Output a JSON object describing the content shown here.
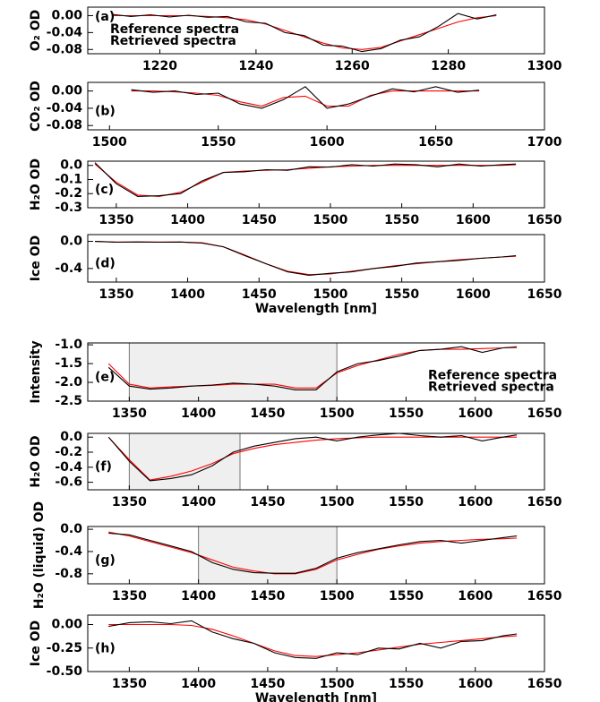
{
  "chart_data": [
    {
      "type": "line",
      "label": "(a)",
      "ylabel": "O₂ OD",
      "legend": "upper left",
      "x": [
        1210,
        1214,
        1218,
        1222,
        1226,
        1230,
        1234,
        1238,
        1242,
        1246,
        1250,
        1254,
        1258,
        1262,
        1266,
        1270,
        1274,
        1278,
        1282,
        1286,
        1290
      ],
      "series": [
        {
          "name": "Reference spectra",
          "color": "#ff0000",
          "values": [
            0,
            0,
            0,
            0,
            0,
            -0.002,
            -0.005,
            -0.01,
            -0.02,
            -0.035,
            -0.05,
            -0.065,
            -0.076,
            -0.08,
            -0.075,
            -0.06,
            -0.045,
            -0.03,
            -0.015,
            -0.005,
            0
          ]
        },
        {
          "name": "Retrieved spectra",
          "color": "#000000",
          "values": [
            0.003,
            -0.002,
            0.002,
            -0.003,
            0.001,
            -0.004,
            -0.002,
            -0.015,
            -0.018,
            -0.04,
            -0.047,
            -0.07,
            -0.072,
            -0.085,
            -0.078,
            -0.058,
            -0.05,
            -0.025,
            0.005,
            -0.008,
            0.002
          ]
        }
      ],
      "xlim": [
        1205,
        1300
      ],
      "xticks": [
        1220,
        1240,
        1260,
        1280,
        1300
      ],
      "ylim": [
        -0.09,
        0.02
      ],
      "yticks": [
        {
          "value": 0,
          "label": "0.00"
        },
        -0.04,
        -0.08
      ]
    },
    {
      "type": "line",
      "label": "(b)",
      "ylabel": "CO₂ OD",
      "x": [
        1510,
        1520,
        1530,
        1540,
        1550,
        1560,
        1570,
        1580,
        1590,
        1600,
        1610,
        1620,
        1630,
        1640,
        1650,
        1660,
        1670
      ],
      "series": [
        {
          "color": "#ff0000",
          "values": [
            0,
            0,
            -0.002,
            -0.005,
            -0.01,
            -0.025,
            -0.035,
            -0.015,
            -0.012,
            -0.035,
            -0.035,
            -0.01,
            0,
            0,
            0,
            0,
            0
          ]
        },
        {
          "color": "#000000",
          "values": [
            0.003,
            -0.003,
            0,
            -0.008,
            -0.005,
            -0.03,
            -0.04,
            -0.02,
            0.01,
            -0.04,
            -0.03,
            -0.012,
            0.005,
            -0.002,
            0.01,
            -0.003,
            0.002
          ]
        }
      ],
      "xlim": [
        1490,
        1700
      ],
      "xticks": [
        1500,
        1550,
        1600,
        1650,
        1700
      ],
      "ylim": [
        -0.09,
        0.02
      ],
      "yticks": [
        {
          "value": 0,
          "label": "0.00"
        },
        -0.04,
        -0.08
      ]
    },
    {
      "type": "line",
      "label": "(c)",
      "ylabel": "H₂O OD",
      "x": [
        1335,
        1350,
        1365,
        1380,
        1395,
        1410,
        1425,
        1440,
        1455,
        1470,
        1485,
        1500,
        1515,
        1530,
        1545,
        1560,
        1575,
        1590,
        1605,
        1620,
        1630
      ],
      "series": [
        {
          "color": "#ff0000",
          "values": [
            0.01,
            -0.12,
            -0.21,
            -0.22,
            -0.19,
            -0.12,
            -0.05,
            -0.04,
            -0.035,
            -0.03,
            -0.02,
            -0.01,
            -0.005,
            0,
            0,
            0,
            0,
            0,
            0,
            0,
            0.005
          ]
        },
        {
          "color": "#000000",
          "values": [
            0.02,
            -0.13,
            -0.22,
            -0.215,
            -0.2,
            -0.11,
            -0.05,
            -0.045,
            -0.03,
            -0.035,
            -0.01,
            -0.012,
            0.005,
            -0.005,
            0.01,
            0.005,
            -0.01,
            0.01,
            -0.005,
            0.005,
            0.01
          ]
        }
      ],
      "xlim": [
        1330,
        1650
      ],
      "xticks": [
        1350,
        1400,
        1450,
        1500,
        1550,
        1600,
        1650
      ],
      "ylim": [
        -0.3,
        0.03
      ],
      "yticks": [
        {
          "value": 0,
          "label": "0.0"
        },
        -0.1,
        -0.2,
        -0.3
      ]
    },
    {
      "type": "line",
      "label": "(d)",
      "ylabel": "Ice OD",
      "xlabel": "Wavelength [nm]",
      "x": [
        1335,
        1350,
        1365,
        1380,
        1395,
        1410,
        1425,
        1440,
        1455,
        1470,
        1485,
        1500,
        1515,
        1530,
        1545,
        1560,
        1575,
        1590,
        1605,
        1620,
        1630
      ],
      "series": [
        {
          "color": "#ff0000",
          "values": [
            0,
            -0.01,
            -0.01,
            -0.01,
            -0.01,
            -0.02,
            -0.08,
            -0.2,
            -0.33,
            -0.44,
            -0.49,
            -0.48,
            -0.44,
            -0.4,
            -0.36,
            -0.33,
            -0.3,
            -0.27,
            -0.25,
            -0.23,
            -0.22
          ]
        },
        {
          "color": "#000000",
          "values": [
            0,
            -0.012,
            -0.008,
            -0.012,
            -0.01,
            -0.025,
            -0.08,
            -0.21,
            -0.33,
            -0.45,
            -0.5,
            -0.47,
            -0.45,
            -0.4,
            -0.37,
            -0.32,
            -0.3,
            -0.28,
            -0.25,
            -0.23,
            -0.21
          ]
        }
      ],
      "xlim": [
        1330,
        1650
      ],
      "xticks": [
        1350,
        1400,
        1450,
        1500,
        1550,
        1600,
        1650
      ],
      "ylim": [
        -0.6,
        0.1
      ],
      "yticks": [
        {
          "value": 0,
          "label": "0.0"
        },
        -0.4
      ]
    },
    {
      "type": "line",
      "label": "(e)",
      "ylabel": "Intensity",
      "legend": "center right",
      "shade": [
        1350,
        1500
      ],
      "x": [
        1335,
        1350,
        1365,
        1380,
        1395,
        1410,
        1425,
        1440,
        1455,
        1470,
        1485,
        1500,
        1515,
        1530,
        1545,
        1560,
        1575,
        1590,
        1605,
        1620,
        1630
      ],
      "series": [
        {
          "name": "Reference spectra",
          "color": "#ff0000",
          "values": [
            -1.5,
            -2.05,
            -2.15,
            -2.12,
            -2.1,
            -2.08,
            -2.05,
            -2.05,
            -2.05,
            -2.15,
            -2.15,
            -1.75,
            -1.55,
            -1.4,
            -1.25,
            -1.15,
            -1.12,
            -1.12,
            -1.1,
            -1.08,
            -1.05
          ]
        },
        {
          "name": "Retrieved spectra",
          "color": "#000000",
          "values": [
            -1.6,
            -2.1,
            -2.18,
            -2.15,
            -2.1,
            -2.07,
            -2.02,
            -2.05,
            -2.1,
            -2.2,
            -2.2,
            -1.72,
            -1.5,
            -1.42,
            -1.3,
            -1.15,
            -1.12,
            -1.05,
            -1.2,
            -1.08,
            -1.07
          ]
        }
      ],
      "xlim": [
        1320,
        1650
      ],
      "xticks": [
        1350,
        1400,
        1450,
        1500,
        1550,
        1600,
        1650
      ],
      "ylim": [
        -2.5,
        -0.95
      ],
      "yticks": [
        {
          "value": -1,
          "label": "-1.0"
        },
        -1.5,
        {
          "value": -2,
          "label": "-2.0"
        },
        -2.5
      ]
    },
    {
      "type": "line",
      "label": "(f)",
      "ylabel": "H₂O OD",
      "shade": [
        1350,
        1430
      ],
      "x": [
        1335,
        1350,
        1365,
        1380,
        1395,
        1410,
        1425,
        1440,
        1455,
        1470,
        1485,
        1500,
        1515,
        1530,
        1545,
        1560,
        1575,
        1590,
        1605,
        1620,
        1630
      ],
      "series": [
        {
          "color": "#ff0000",
          "values": [
            0,
            -0.3,
            -0.57,
            -0.52,
            -0.45,
            -0.35,
            -0.22,
            -0.15,
            -0.1,
            -0.07,
            -0.04,
            -0.02,
            -0.01,
            0,
            0,
            0,
            0,
            0,
            0,
            0,
            0
          ]
        },
        {
          "color": "#000000",
          "values": [
            0,
            -0.32,
            -0.58,
            -0.55,
            -0.5,
            -0.38,
            -0.2,
            -0.12,
            -0.07,
            -0.02,
            0,
            -0.05,
            0,
            0.03,
            0.05,
            0.02,
            0,
            0.02,
            -0.05,
            0,
            0.03
          ]
        }
      ],
      "xlim": [
        1320,
        1650
      ],
      "xticks": [
        1350,
        1400,
        1450,
        1500,
        1550,
        1600,
        1650
      ],
      "ylim": [
        -0.7,
        0.05
      ],
      "yticks": [
        {
          "value": 0,
          "label": "0.0"
        },
        -0.2,
        -0.4,
        -0.6
      ]
    },
    {
      "type": "line",
      "label": "(g)",
      "ylabel": "H₂O (liquid) OD",
      "shade": [
        1400,
        1500
      ],
      "x": [
        1335,
        1350,
        1365,
        1380,
        1395,
        1410,
        1425,
        1440,
        1455,
        1470,
        1485,
        1500,
        1515,
        1530,
        1545,
        1560,
        1575,
        1590,
        1605,
        1620,
        1630
      ],
      "series": [
        {
          "color": "#ff0000",
          "values": [
            -0.05,
            -0.12,
            -0.22,
            -0.32,
            -0.42,
            -0.55,
            -0.68,
            -0.75,
            -0.8,
            -0.8,
            -0.72,
            -0.55,
            -0.45,
            -0.36,
            -0.3,
            -0.25,
            -0.22,
            -0.2,
            -0.18,
            -0.17,
            -0.16
          ]
        },
        {
          "color": "#000000",
          "values": [
            -0.07,
            -0.1,
            -0.2,
            -0.3,
            -0.4,
            -0.6,
            -0.72,
            -0.78,
            -0.79,
            -0.79,
            -0.7,
            -0.52,
            -0.42,
            -0.35,
            -0.28,
            -0.22,
            -0.2,
            -0.25,
            -0.2,
            -0.15,
            -0.12
          ]
        }
      ],
      "xlim": [
        1320,
        1650
      ],
      "xticks": [
        1350,
        1400,
        1450,
        1500,
        1550,
        1600,
        1650
      ],
      "ylim": [
        -0.98,
        0.05
      ],
      "yticks": [
        {
          "value": 0,
          "label": "0.0"
        },
        -0.4,
        -0.8
      ]
    },
    {
      "type": "line",
      "label": "(h)",
      "ylabel": "Ice OD",
      "xlabel": "Wavelength [nm]",
      "x": [
        1335,
        1350,
        1365,
        1380,
        1395,
        1410,
        1425,
        1440,
        1455,
        1470,
        1485,
        1500,
        1515,
        1530,
        1545,
        1560,
        1575,
        1590,
        1605,
        1620,
        1630
      ],
      "series": [
        {
          "color": "#ff0000",
          "values": [
            0,
            0,
            0,
            0,
            -0.01,
            -0.05,
            -0.12,
            -0.2,
            -0.28,
            -0.33,
            -0.34,
            -0.32,
            -0.3,
            -0.27,
            -0.24,
            -0.21,
            -0.19,
            -0.17,
            -0.15,
            -0.13,
            -0.12
          ]
        },
        {
          "color": "#000000",
          "values": [
            -0.02,
            0.02,
            0.03,
            0.01,
            0.04,
            -0.08,
            -0.15,
            -0.2,
            -0.3,
            -0.35,
            -0.36,
            -0.3,
            -0.32,
            -0.25,
            -0.26,
            -0.2,
            -0.25,
            -0.18,
            -0.17,
            -0.12,
            -0.1
          ]
        }
      ],
      "xlim": [
        1320,
        1650
      ],
      "xticks": [
        1350,
        1400,
        1450,
        1500,
        1550,
        1600,
        1650
      ],
      "ylim": [
        -0.5,
        0.1
      ],
      "yticks": [
        {
          "value": 0,
          "label": "0.00"
        },
        -0.25,
        {
          "value": -0.5,
          "label": "-0.50"
        }
      ]
    }
  ]
}
